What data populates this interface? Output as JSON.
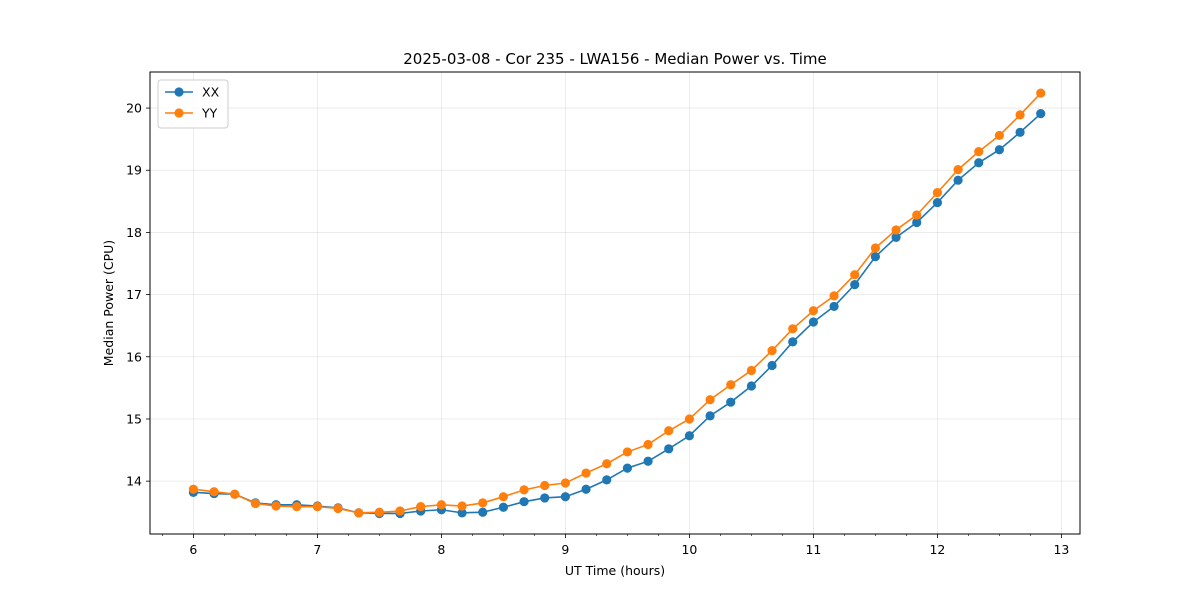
{
  "chart_data": {
    "type": "line",
    "title": "2025-03-08 - Cor 235 - LWA156 - Median Power vs. Time",
    "xlabel": "UT Time (hours)",
    "ylabel": "Median Power (CPU)",
    "xlim": [
      5.65,
      13.15
    ],
    "ylim": [
      13.15,
      20.58
    ],
    "xticks": [
      6,
      7,
      8,
      9,
      10,
      11,
      12,
      13
    ],
    "xticks_minor_step": 0.25,
    "yticks": [
      14,
      15,
      16,
      17,
      18,
      19,
      20
    ],
    "grid": true,
    "legend_position": "top-left",
    "x": [
      6.0,
      6.1667,
      6.3333,
      6.5,
      6.6667,
      6.8333,
      7.0,
      7.1667,
      7.3333,
      7.5,
      7.6667,
      7.8333,
      8.0,
      8.1667,
      8.3333,
      8.5,
      8.6667,
      8.8333,
      9.0,
      9.1667,
      9.3333,
      9.5,
      9.6667,
      9.8333,
      10.0,
      10.1667,
      10.3333,
      10.5,
      10.6667,
      10.8333,
      11.0,
      11.1667,
      11.3333,
      11.5,
      11.6667,
      11.8333,
      12.0,
      12.1667,
      12.3333,
      12.5,
      12.6667,
      12.8333
    ],
    "series": [
      {
        "name": "XX",
        "color": "#1f77b4",
        "values": [
          13.82,
          13.8,
          13.79,
          13.65,
          13.62,
          13.62,
          13.6,
          13.57,
          13.49,
          13.48,
          13.48,
          13.52,
          13.54,
          13.49,
          13.5,
          13.58,
          13.67,
          13.73,
          13.75,
          13.87,
          14.02,
          14.21,
          14.32,
          14.52,
          14.73,
          15.05,
          15.27,
          15.53,
          15.86,
          16.24,
          16.56,
          16.81,
          17.16,
          17.61,
          17.92,
          18.16,
          18.48,
          18.84,
          19.12,
          19.33,
          19.61,
          19.91
        ]
      },
      {
        "name": "YY",
        "color": "#ff7f0e",
        "values": [
          13.87,
          13.83,
          13.79,
          13.64,
          13.6,
          13.59,
          13.59,
          13.56,
          13.49,
          13.5,
          13.52,
          13.59,
          13.62,
          13.6,
          13.65,
          13.75,
          13.86,
          13.93,
          13.97,
          14.13,
          14.28,
          14.47,
          14.59,
          14.81,
          15.0,
          15.31,
          15.55,
          15.78,
          16.1,
          16.45,
          16.74,
          16.98,
          17.32,
          17.75,
          18.04,
          18.28,
          18.64,
          19.01,
          19.3,
          19.56,
          19.89,
          20.24
        ]
      }
    ]
  }
}
